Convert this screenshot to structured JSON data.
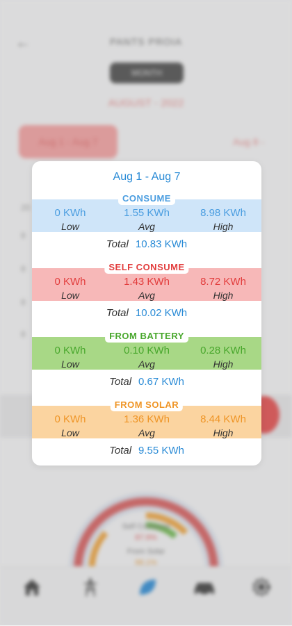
{
  "background": {
    "title": "PANTS PROIA",
    "period_selector": "MONTH",
    "month_label": "AUGUST - 2022",
    "week_pill": "Aug 1 - Aug 7",
    "next_link": "Aug 8 -",
    "gauge": {
      "label1": "Self Consume",
      "value1": "87.9%",
      "label2": "From Solar",
      "value2": "88.1%"
    }
  },
  "modal": {
    "title": "Aug 1 - Aug 7",
    "sections": [
      {
        "title": "CONSUME",
        "low": "0 KWh",
        "avg": "1.55 KWh",
        "high": "8.98 KWh",
        "total": "10.83 KWh",
        "low_label": "Low",
        "avg_label": "Avg",
        "high_label": "High",
        "total_label": "Total"
      },
      {
        "title": "SELF CONSUME",
        "low": "0 KWh",
        "avg": "1.43 KWh",
        "high": "8.72 KWh",
        "total": "10.02 KWh",
        "low_label": "Low",
        "avg_label": "Avg",
        "high_label": "High",
        "total_label": "Total"
      },
      {
        "title": "FROM BATTERY",
        "low": "0 KWh",
        "avg": "0.10 KWh",
        "high": "0.28 KWh",
        "total": "0.67 KWh",
        "low_label": "Low",
        "avg_label": "Avg",
        "high_label": "High",
        "total_label": "Total"
      },
      {
        "title": "FROM SOLAR",
        "low": "0 KWh",
        "avg": "1.36 KWh",
        "high": "8.44 KWh",
        "total": "9.55 KWh",
        "low_label": "Low",
        "avg_label": "Avg",
        "high_label": "High",
        "total_label": "Total"
      }
    ]
  },
  "colors": {
    "title_blue": "#2a8bd6",
    "consume_band": "#cfe5f9",
    "consume_text": "#4a9de0",
    "self_band": "#f7b8b8",
    "self_text": "#e23c3c",
    "battery_band": "#a8d886",
    "battery_text": "#48a72c",
    "solar_band": "#fbd4a0",
    "solar_text": "#ef9526"
  },
  "tabs": [
    "home-icon",
    "power-line-icon",
    "leaf-icon",
    "car-icon",
    "settings-icon"
  ]
}
